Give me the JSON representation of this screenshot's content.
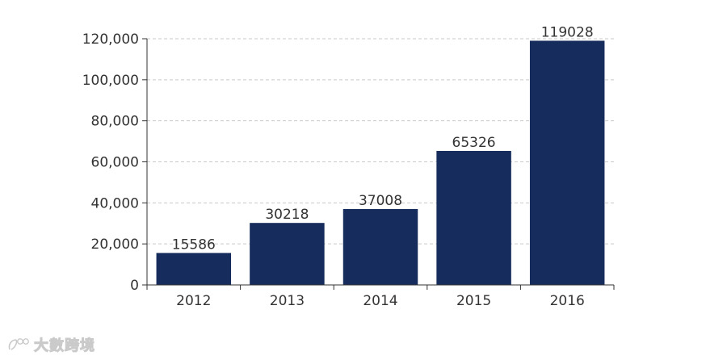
{
  "chart_data": {
    "type": "bar",
    "title": "",
    "xlabel": "",
    "ylabel": "",
    "categories": [
      "2012",
      "2013",
      "2014",
      "2015",
      "2016"
    ],
    "values": [
      15586,
      30218,
      37008,
      65326,
      119028
    ],
    "data_labels": [
      "15586",
      "30218",
      "37008",
      "65326",
      "119028"
    ],
    "ylim": [
      0,
      120000
    ],
    "yticks": [
      0,
      20000,
      40000,
      60000,
      80000,
      100000,
      120000
    ],
    "ytick_labels": [
      "0",
      "20,000",
      "40,000",
      "60,000",
      "80,000",
      "100,000",
      "120,000"
    ],
    "grid": "horizontal dashed",
    "legend": "none",
    "bar_color": "#162c5c",
    "grid_color": "#c9c9c9",
    "axis_color": "#333333"
  },
  "watermark": {
    "text": "大數跨境",
    "icon": "brand-logo-icon"
  }
}
